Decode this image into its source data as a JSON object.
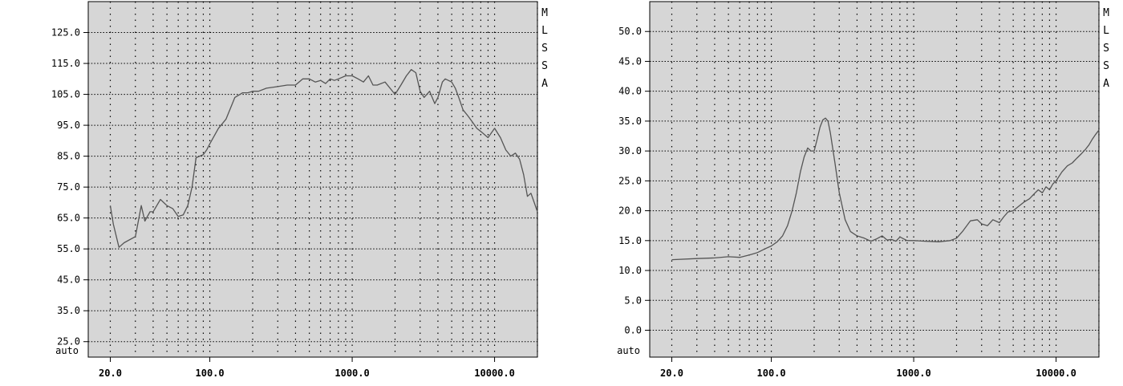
{
  "charts": [
    {
      "side_label": [
        "M",
        "L",
        "S",
        "S",
        "A"
      ],
      "auto_label": "auto",
      "chart_data": {
        "type": "line",
        "x_scale": "log",
        "xlim": [
          14,
          20000
        ],
        "ylim": [
          20,
          135
        ],
        "ytick_values": [
          125,
          115,
          105,
          95,
          85,
          75,
          65,
          55,
          45,
          35,
          25
        ],
        "ytick_labels": [
          "125.0",
          "115.0",
          "105.0",
          "95.0",
          "85.0",
          "75.0",
          "65.0",
          "55.0",
          "45.0",
          "35.0",
          "25.0"
        ],
        "xtick_values": [
          20,
          100,
          1000,
          10000
        ],
        "xtick_labels": [
          "20.0",
          "100.0",
          "1000.0",
          "10000.0"
        ],
        "grid": true,
        "series": [
          {
            "color": "#555555",
            "x": [
              20,
              21,
              23,
              25,
              30,
              33,
              35,
              38,
              40,
              45,
              50,
              55,
              60,
              65,
              70,
              75,
              80,
              85,
              90,
              95,
              100,
              115,
              130,
              150,
              170,
              185,
              200,
              220,
              250,
              300,
              350,
              400,
              450,
              500,
              550,
              600,
              650,
              700,
              750,
              800,
              900,
              1000,
              1100,
              1200,
              1300,
              1400,
              1500,
              1700,
              2000,
              2200,
              2400,
              2600,
              2800,
              3000,
              3200,
              3500,
              3800,
              4000,
              4300,
              4500,
              5000,
              5300,
              5600,
              6000,
              6500,
              7000,
              7500,
              8000,
              9000,
              10000,
              11000,
              12000,
              13000,
              14000,
              15000,
              16000,
              17000,
              18000,
              19000,
              20000
            ],
            "y": [
              69,
              63,
              55.5,
              57,
              59,
              69,
              64,
              67,
              67,
              71,
              69,
              68,
              65.5,
              66,
              69,
              75,
              84.5,
              85,
              85.5,
              87,
              89,
              94,
              97,
              104,
              105.5,
              105.5,
              106,
              106,
              107,
              107.5,
              108,
              108,
              110,
              110,
              109,
              109.5,
              108.5,
              110,
              109.5,
              110,
              111,
              111,
              110,
              109,
              111,
              108,
              108,
              109,
              105,
              108,
              111,
              113,
              112,
              106,
              104,
              106,
              102,
              104,
              109,
              110,
              109,
              107,
              104,
              100,
              98,
              96,
              94,
              93,
              91,
              94,
              91,
              87,
              85,
              86,
              84,
              79,
              72,
              73,
              70,
              67
            ]
          }
        ]
      }
    },
    {
      "side_label": [
        "M",
        "L",
        "S",
        "S",
        "A"
      ],
      "auto_label": "auto",
      "chart_data": {
        "type": "line",
        "x_scale": "log",
        "xlim": [
          14,
          20000
        ],
        "ylim": [
          -4.5,
          55
        ],
        "ytick_values": [
          50,
          45,
          40,
          35,
          30,
          25,
          20,
          15,
          10,
          5,
          0
        ],
        "ytick_labels": [
          "50.0",
          "45.0",
          "40.0",
          "35.0",
          "30.0",
          "25.0",
          "20.0",
          "15.0",
          "10.0",
          "5.0",
          "0.0"
        ],
        "xtick_values": [
          20,
          100,
          1000,
          10000
        ],
        "xtick_labels": [
          "20.0",
          "100.0",
          "1000.0",
          "10000.0"
        ],
        "grid": true,
        "series": [
          {
            "color": "#555555",
            "x": [
              20,
              30,
              40,
              50,
              60,
              70,
              80,
              90,
              100,
              110,
              120,
              130,
              140,
              150,
              160,
              170,
              180,
              190,
              200,
              210,
              220,
              230,
              240,
              250,
              260,
              280,
              300,
              330,
              360,
              400,
              450,
              500,
              550,
              600,
              650,
              700,
              750,
              800,
              900,
              1000,
              1200,
              1500,
              1800,
              2000,
              2200,
              2500,
              2800,
              3000,
              3300,
              3600,
              4000,
              4300,
              4600,
              5000,
              5500,
              6000,
              6500,
              7000,
              7500,
              8000,
              8500,
              9000,
              9500,
              10000,
              11000,
              12000,
              13000,
              14000,
              15000,
              16000,
              17000,
              18000,
              19000,
              20000
            ],
            "y": [
              11.8,
              12.0,
              12.1,
              12.3,
              12.2,
              12.6,
              13.0,
              13.6,
              14.1,
              14.8,
              15.8,
              17.5,
              20.0,
              23.0,
              26.5,
              29.0,
              30.5,
              30.0,
              30.0,
              32.0,
              34.0,
              35.2,
              35.5,
              35.0,
              33.0,
              28.0,
              23.0,
              18.5,
              16.5,
              15.8,
              15.4,
              14.9,
              15.3,
              15.8,
              15.1,
              15.2,
              14.9,
              15.6,
              15.0,
              15.0,
              14.9,
              14.8,
              15.0,
              15.4,
              16.5,
              18.3,
              18.5,
              17.8,
              17.5,
              18.5,
              18.0,
              19.0,
              19.8,
              20.0,
              20.8,
              21.5,
              22.0,
              22.8,
              23.5,
              23.0,
              24.0,
              23.5,
              24.5,
              25.0,
              26.5,
              27.5,
              28.0,
              28.8,
              29.5,
              30.2,
              31.0,
              32.0,
              32.8,
              33.5
            ]
          }
        ]
      }
    }
  ]
}
